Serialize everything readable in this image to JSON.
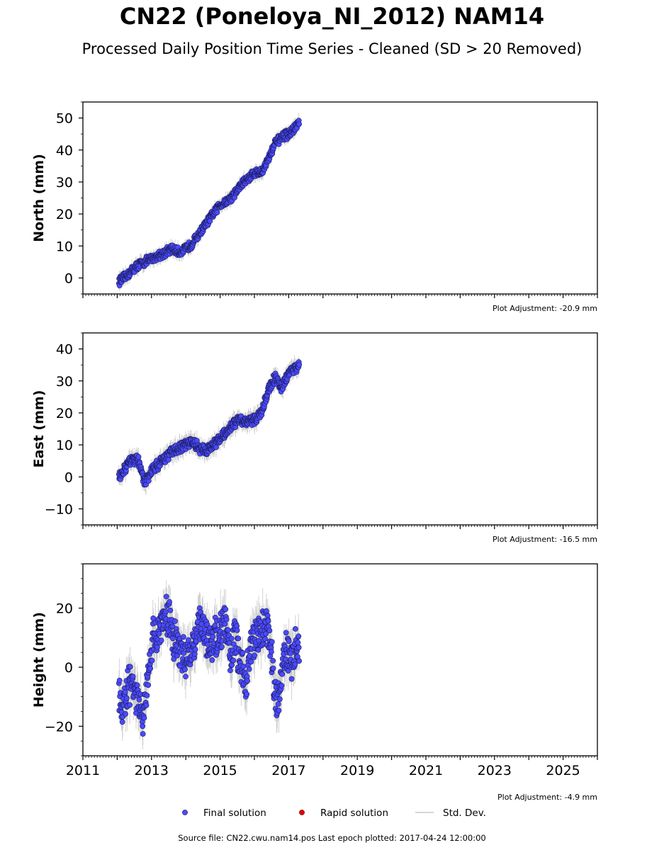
{
  "header": {
    "title": "CN22 (Poneloya_NI_2012) NAM14",
    "subtitle": "Processed Daily Position Time Series - Cleaned (SD > 20 Removed)"
  },
  "footer": {
    "text": "Source file: CN22.cwu.nam14.pos  Last epoch plotted: 2017-04-24 12:00:00"
  },
  "legend": {
    "items": [
      {
        "label": "Final solution",
        "color": "#4a4aff"
      },
      {
        "label": "Rapid solution",
        "color": "#e00000"
      },
      {
        "label": "Std. Dev.",
        "color": "#c8c8c8"
      }
    ]
  },
  "colors": {
    "final_solution": "#4a4aff",
    "rapid_solution": "#e00000",
    "std_dev": "#c8c8c8"
  },
  "chart_data": [
    {
      "type": "scatter",
      "ylabel": "North (mm)",
      "xlim": [
        2011,
        2026
      ],
      "ylim": [
        -5,
        55
      ],
      "yticks": [
        0,
        10,
        20,
        30,
        40,
        50
      ],
      "xtick_labels": [],
      "adjustment": "Plot Adjustment: -20.9 mm",
      "series": [
        {
          "name": "Final solution",
          "x": [
            2012.05,
            2012.2,
            2012.4,
            2012.6,
            2012.8,
            2013.0,
            2013.2,
            2013.4,
            2013.6,
            2013.8,
            2014.0,
            2014.2,
            2014.4,
            2014.6,
            2014.8,
            2015.0,
            2015.2,
            2015.4,
            2015.6,
            2015.8,
            2016.0,
            2016.2,
            2016.4,
            2016.6,
            2016.8,
            2017.0,
            2017.2,
            2017.31
          ],
          "y": [
            -1,
            0,
            2,
            4,
            5,
            6,
            7,
            8,
            9,
            8,
            9,
            11,
            14,
            17,
            20,
            23,
            24,
            26,
            29,
            31,
            33,
            33,
            37,
            42,
            44,
            45,
            47,
            49
          ]
        }
      ]
    },
    {
      "type": "scatter",
      "ylabel": "East (mm)",
      "xlim": [
        2011,
        2026
      ],
      "ylim": [
        -15,
        45
      ],
      "yticks": [
        -10,
        0,
        10,
        20,
        30,
        40
      ],
      "xtick_labels": [],
      "adjustment": "Plot Adjustment: -16.5 mm",
      "series": [
        {
          "name": "Final solution",
          "x": [
            2012.05,
            2012.2,
            2012.4,
            2012.6,
            2012.8,
            2013.0,
            2013.2,
            2013.4,
            2013.6,
            2013.8,
            2014.0,
            2014.2,
            2014.4,
            2014.6,
            2014.8,
            2015.0,
            2015.2,
            2015.4,
            2015.6,
            2015.8,
            2016.0,
            2016.2,
            2016.4,
            2016.6,
            2016.8,
            2017.0,
            2017.2,
            2017.31
          ],
          "y": [
            0,
            2,
            5,
            6,
            -2,
            2,
            4,
            6,
            8,
            9,
            10,
            11,
            9,
            8,
            10,
            12,
            14,
            17,
            18,
            17,
            18,
            20,
            27,
            31,
            28,
            32,
            34,
            35
          ]
        }
      ]
    },
    {
      "type": "scatter",
      "ylabel": "Height (mm)",
      "xlim": [
        2011,
        2026
      ],
      "ylim": [
        -30,
        35
      ],
      "yticks": [
        -20,
        0,
        20
      ],
      "xtick_labels": [
        "2011",
        "2013",
        "2015",
        "2017",
        "2019",
        "2021",
        "2023",
        "2025"
      ],
      "adjustment": "Plot Adjustment: -4.9 mm",
      "series": [
        {
          "name": "Final solution",
          "x": [
            2012.05,
            2012.15,
            2012.3,
            2012.45,
            2012.6,
            2012.75,
            2012.9,
            2013.05,
            2013.2,
            2013.35,
            2013.5,
            2013.65,
            2013.8,
            2013.95,
            2014.1,
            2014.25,
            2014.4,
            2014.55,
            2014.7,
            2014.85,
            2015.0,
            2015.15,
            2015.3,
            2015.45,
            2015.6,
            2015.75,
            2015.9,
            2016.05,
            2016.2,
            2016.35,
            2016.5,
            2016.65,
            2016.8,
            2016.95,
            2017.1,
            2017.25,
            2017.31
          ],
          "y": [
            -10,
            -15,
            -8,
            -5,
            -12,
            -18,
            -5,
            10,
            12,
            15,
            18,
            10,
            8,
            2,
            5,
            10,
            14,
            12,
            8,
            10,
            12,
            15,
            5,
            10,
            0,
            -5,
            8,
            10,
            12,
            15,
            5,
            -15,
            0,
            5,
            2,
            8,
            5
          ]
        }
      ]
    }
  ]
}
